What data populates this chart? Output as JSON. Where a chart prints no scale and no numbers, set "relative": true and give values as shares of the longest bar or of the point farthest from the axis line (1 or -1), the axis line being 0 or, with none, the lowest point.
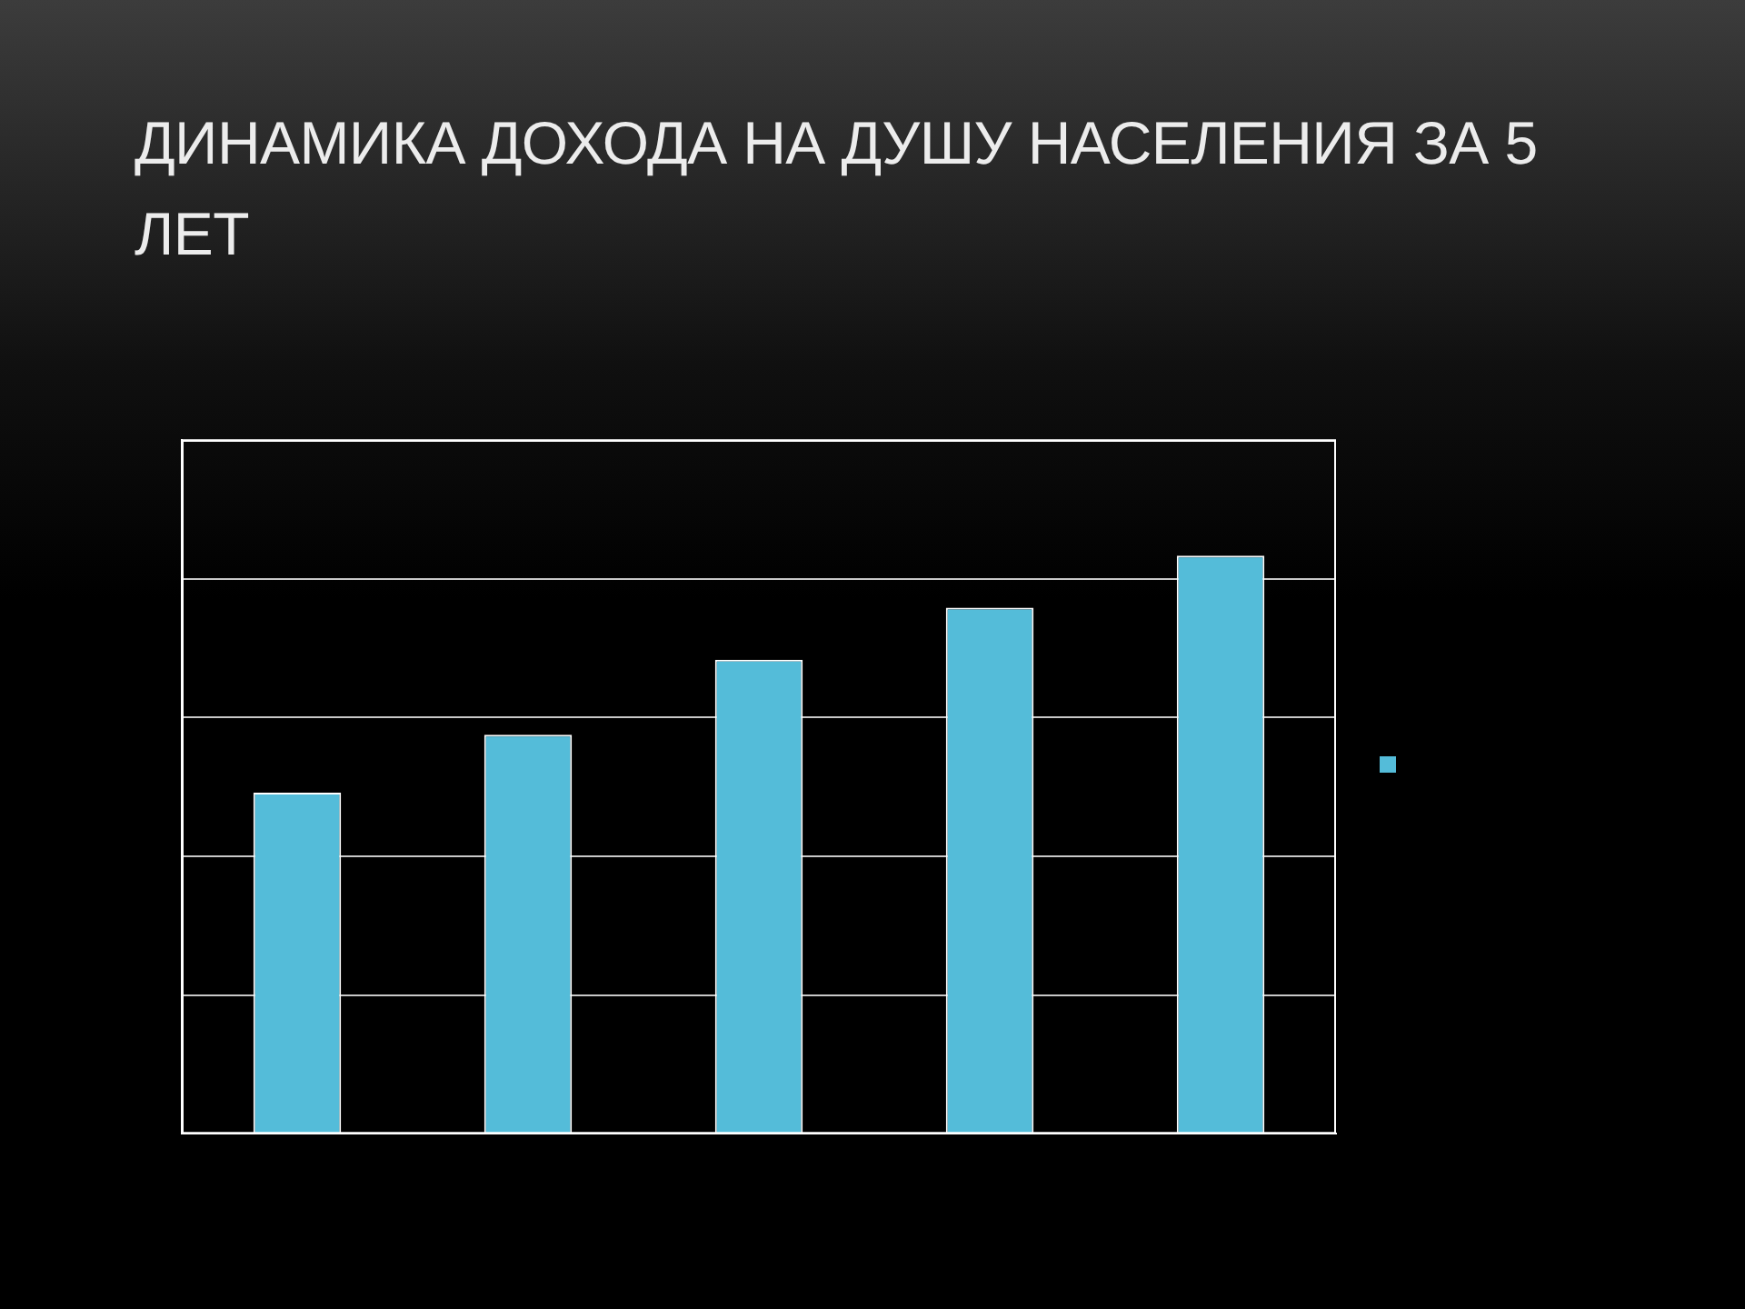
{
  "chart_data": {
    "type": "bar",
    "title": "ДИНАМИКА ДОХОДА НА ДУШУ НАСЕЛЕНИЯ ЗА 5 ЛЕТ",
    "categories": [
      null,
      null,
      null,
      null,
      null
    ],
    "series": [
      {
        "color": "#54bcd9",
        "values": [
          0.59,
          0.69,
          0.82,
          0.91,
          1
        ]
      }
    ],
    "relative": true,
    "grid": "y"
  }
}
